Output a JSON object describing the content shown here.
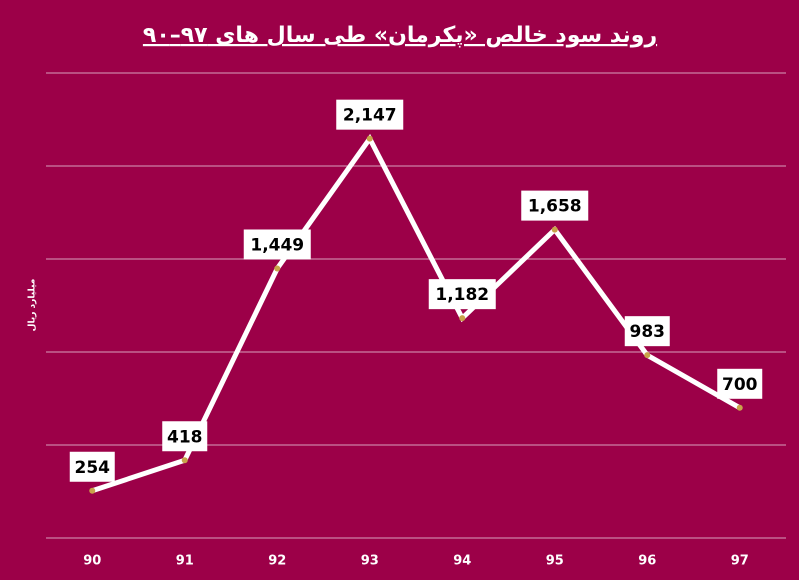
{
  "chart_data": {
    "type": "line",
    "title": "روند سود خالص «پکرمان» طی سال های ۹۷–۹۰",
    "y_label": "میلیارد ریال",
    "categories": [
      "90",
      "91",
      "92",
      "93",
      "94",
      "95",
      "96",
      "97"
    ],
    "values": [
      254,
      418,
      1449,
      2147,
      1182,
      1658,
      983,
      700
    ],
    "value_labels": [
      "254",
      "418",
      "1,449",
      "2,147",
      "1,182",
      "1,658",
      "983",
      "700"
    ],
    "color": "#ffffff",
    "marker_color": "#c9a34a",
    "ylim": [
      0,
      2500
    ],
    "yticks": [
      0,
      500,
      1000,
      1500,
      2000,
      2500
    ],
    "grid": true
  }
}
